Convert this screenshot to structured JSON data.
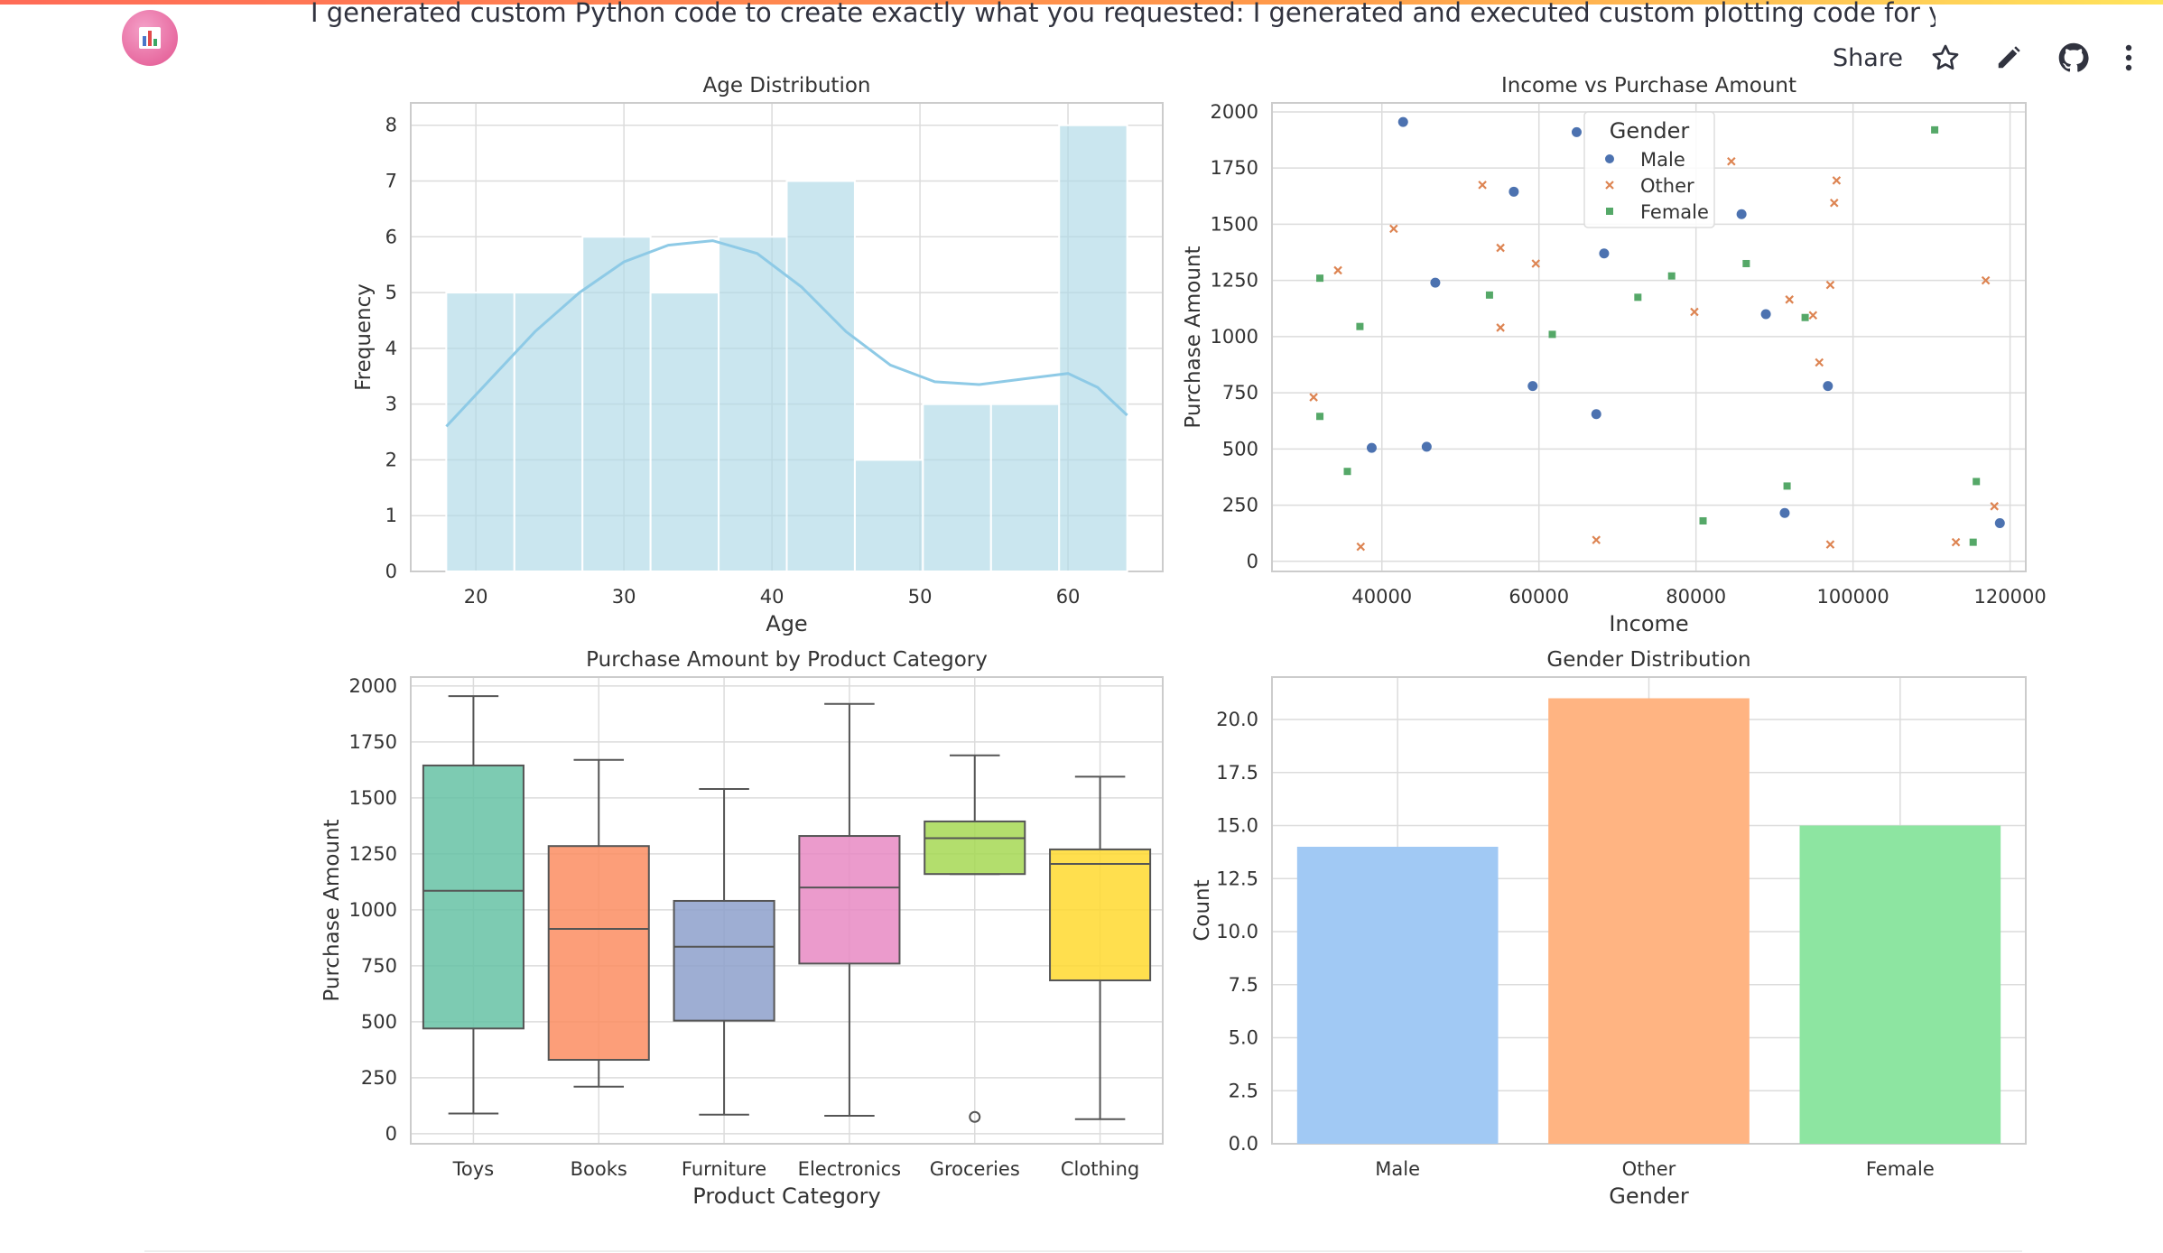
{
  "message": "I generated custom Python code to create exactly what you requested: I generated and executed custom plotting code for your request.",
  "toolbar": {
    "share_label": "Share",
    "icons": [
      "star-icon",
      "edit-pencil-icon",
      "github-icon",
      "more-vertical-icon"
    ]
  },
  "app_icon": "bar-chart-icon",
  "colors": {
    "accent_gradient": [
      "#ff6b57",
      "#ffe45c"
    ],
    "avatar": "#e2548f"
  },
  "chart_data": [
    {
      "type": "bar",
      "title": "Age Distribution",
      "xlabel": "Age",
      "ylabel": "Frequency",
      "bins": [
        [
          18,
          22.6
        ],
        [
          22.6,
          27.2
        ],
        [
          27.2,
          31.8
        ],
        [
          31.8,
          36.4
        ],
        [
          36.4,
          41.0
        ],
        [
          41.0,
          45.6
        ],
        [
          45.6,
          50.2
        ],
        [
          50.2,
          54.8
        ],
        [
          54.8,
          59.4
        ],
        [
          59.4,
          64
        ]
      ],
      "values": [
        5,
        5,
        6,
        5,
        6,
        7,
        2,
        3,
        3,
        8
      ],
      "kde": [
        [
          18,
          2.6
        ],
        [
          21,
          3.45
        ],
        [
          24,
          4.3
        ],
        [
          27,
          5.0
        ],
        [
          30,
          5.55
        ],
        [
          33,
          5.85
        ],
        [
          36,
          5.93
        ],
        [
          39,
          5.7
        ],
        [
          42,
          5.1
        ],
        [
          45,
          4.3
        ],
        [
          48,
          3.7
        ],
        [
          51,
          3.4
        ],
        [
          54,
          3.35
        ],
        [
          57,
          3.45
        ],
        [
          60,
          3.55
        ],
        [
          62,
          3.3
        ],
        [
          64,
          2.8
        ]
      ],
      "xticks": [
        20,
        30,
        40,
        50,
        60
      ],
      "yticks": [
        0,
        1,
        2,
        3,
        4,
        5,
        6,
        7,
        8
      ],
      "xlim": [
        15.6,
        66.4
      ],
      "ylim": [
        0,
        8.4
      ],
      "color": "#add8e6",
      "grid": true
    },
    {
      "type": "scatter",
      "title": "Income vs Purchase Amount",
      "xlabel": "Income",
      "ylabel": "Purchase Amount",
      "xticks": [
        40000,
        60000,
        80000,
        100000,
        120000
      ],
      "yticks": [
        0,
        250,
        500,
        750,
        1000,
        1250,
        1500,
        1750,
        2000
      ],
      "xlim": [
        26000,
        122000
      ],
      "ylim": [
        -45,
        2040
      ],
      "legend": {
        "title": "Gender",
        "position": "upper-center"
      },
      "grid": true,
      "series": [
        {
          "name": "Male",
          "marker": "circle",
          "color": "#4c72b0",
          "points": [
            [
              42700,
              1955
            ],
            [
              64800,
              1910
            ],
            [
              56800,
              1645
            ],
            [
              85800,
              1545
            ],
            [
              68300,
              1370
            ],
            [
              46800,
              1240
            ],
            [
              88900,
              1100
            ],
            [
              59200,
              780
            ],
            [
              96800,
              780
            ],
            [
              67300,
              655
            ],
            [
              38700,
              505
            ],
            [
              45700,
              510
            ],
            [
              91300,
              215
            ],
            [
              118700,
              170
            ]
          ]
        },
        {
          "name": "Other",
          "marker": "x",
          "color": "#dd8452",
          "points": [
            [
              84500,
              1780
            ],
            [
              97900,
              1695
            ],
            [
              52800,
              1675
            ],
            [
              97600,
              1595
            ],
            [
              41500,
              1480
            ],
            [
              55100,
              1395
            ],
            [
              59600,
              1325
            ],
            [
              34400,
              1295
            ],
            [
              97100,
              1230
            ],
            [
              116900,
              1250
            ],
            [
              91900,
              1165
            ],
            [
              79800,
              1110
            ],
            [
              94900,
              1095
            ],
            [
              55100,
              1040
            ],
            [
              95700,
              885
            ],
            [
              31300,
              730
            ],
            [
              67300,
              95
            ],
            [
              37300,
              65
            ],
            [
              97100,
              75
            ],
            [
              113100,
              85
            ],
            [
              118000,
              245
            ]
          ]
        },
        {
          "name": "Female",
          "marker": "square",
          "color": "#55a868",
          "points": [
            [
              110400,
              1920
            ],
            [
              86400,
              1325
            ],
            [
              76900,
              1270
            ],
            [
              32100,
              1260
            ],
            [
              53700,
              1185
            ],
            [
              72600,
              1175
            ],
            [
              93900,
              1085
            ],
            [
              61700,
              1010
            ],
            [
              37200,
              1045
            ],
            [
              32100,
              645
            ],
            [
              35600,
              400
            ],
            [
              91600,
              335
            ],
            [
              115700,
              355
            ],
            [
              80900,
              180
            ],
            [
              115300,
              85
            ]
          ]
        }
      ]
    },
    {
      "type": "box",
      "title": "Purchase Amount by Product Category",
      "xlabel": "Product Category",
      "ylabel": "Purchase Amount",
      "categories": [
        "Toys",
        "Books",
        "Furniture",
        "Electronics",
        "Groceries",
        "Clothing"
      ],
      "boxes": [
        {
          "whislo": 90,
          "q1": 470,
          "med": 1085,
          "q3": 1645,
          "whishi": 1955,
          "fliers": []
        },
        {
          "whislo": 210,
          "q1": 330,
          "med": 915,
          "q3": 1285,
          "whishi": 1670,
          "fliers": []
        },
        {
          "whislo": 85,
          "q1": 505,
          "med": 835,
          "q3": 1040,
          "whishi": 1540,
          "fliers": []
        },
        {
          "whislo": 80,
          "q1": 760,
          "med": 1100,
          "q3": 1330,
          "whishi": 1920,
          "fliers": []
        },
        {
          "whislo": 1160,
          "q1": 1160,
          "med": 1320,
          "q3": 1395,
          "whishi": 1690,
          "fliers": [
            75
          ]
        },
        {
          "whislo": 65,
          "q1": 685,
          "med": 1205,
          "q3": 1270,
          "whishi": 1595,
          "fliers": []
        }
      ],
      "colors": [
        "#66c2a5",
        "#fc8d62",
        "#8da0cb",
        "#e78ac3",
        "#a6d854",
        "#ffd92f"
      ],
      "yticks": [
        0,
        250,
        500,
        750,
        1000,
        1250,
        1500,
        1750,
        2000
      ],
      "ylim": [
        -45,
        2040
      ],
      "grid": true
    },
    {
      "type": "bar",
      "title": "Gender Distribution",
      "xlabel": "Gender",
      "ylabel": "Count",
      "categories": [
        "Male",
        "Other",
        "Female"
      ],
      "values": [
        14,
        21,
        15
      ],
      "colors": [
        "#a1c9f4",
        "#ffb482",
        "#8de5a1"
      ],
      "yticks": [
        0.0,
        2.5,
        5.0,
        7.5,
        10.0,
        12.5,
        15.0,
        17.5,
        20.0
      ],
      "ylim": [
        0,
        22
      ],
      "grid": true
    }
  ]
}
